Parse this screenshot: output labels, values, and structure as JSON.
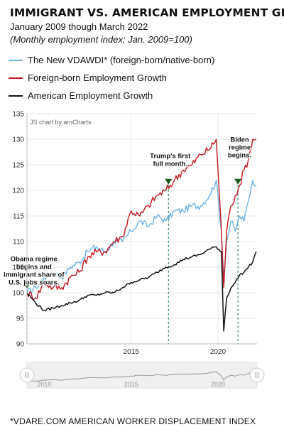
{
  "title": "IMMIGRANT VS. AMERICAN EMPLOYMENT GROWTH",
  "subtitle": "January 2009 though March 2022",
  "subtitle_note": "(Monthly employment index: Jan. 2009=100)",
  "credit": "JS chart by amCharts",
  "footnote": "*VDARE.COM AMERICAN WORKER DISPLACEMENT INDEX",
  "colors": {
    "vdawdi": "#6db3e8",
    "foreign": "#c4161c",
    "american": "#111111",
    "marker": "#1f5c1f",
    "vline": "#2e8b57",
    "grid": "#e8e8e8",
    "scrollbar_bg": "#efefef"
  },
  "chart_data": {
    "type": "line",
    "title": "IMMIGRANT VS. AMERICAN EMPLOYMENT GROWTH",
    "ylim": [
      90,
      135
    ],
    "xlim": [
      2009.0,
      2022.25
    ],
    "yticks": [
      90,
      95,
      100,
      105,
      110,
      115,
      120,
      125,
      130,
      135
    ],
    "xticks": [
      2015,
      2020
    ],
    "grid": true,
    "legend_position": "top-left",
    "series": [
      {
        "name": "The New VDAWDI* (foreign-born/native-born)",
        "color_key": "vdawdi",
        "x": [
          2009.0,
          2009.5,
          2010.0,
          2010.5,
          2011.0,
          2011.5,
          2012.0,
          2012.5,
          2013.0,
          2013.5,
          2014.0,
          2014.5,
          2015.0,
          2015.5,
          2016.0,
          2016.5,
          2017.0,
          2017.5,
          2018.0,
          2018.5,
          2019.0,
          2019.5,
          2019.9,
          2020.2,
          2020.33,
          2020.5,
          2020.75,
          2021.0,
          2021.25,
          2021.5,
          2021.75,
          2022.0,
          2022.2
        ],
        "values": [
          100,
          101,
          103,
          104,
          103,
          105,
          106,
          108,
          109,
          108,
          110,
          110,
          112,
          114,
          113,
          115,
          114,
          116,
          116,
          117,
          117,
          119,
          122,
          112,
          103,
          110,
          114,
          112,
          115,
          114,
          118,
          122,
          121
        ]
      },
      {
        "name": "Foreign-born Employment Growth",
        "color_key": "foreign",
        "x": [
          2009.0,
          2009.5,
          2010.0,
          2010.5,
          2011.0,
          2011.5,
          2012.0,
          2012.5,
          2013.0,
          2013.5,
          2014.0,
          2014.5,
          2015.0,
          2015.5,
          2016.0,
          2016.5,
          2017.0,
          2017.5,
          2018.0,
          2018.5,
          2019.0,
          2019.5,
          2019.9,
          2020.2,
          2020.33,
          2020.5,
          2020.75,
          2021.0,
          2021.25,
          2021.5,
          2021.75,
          2022.0,
          2022.2
        ],
        "values": [
          100,
          99,
          102,
          101,
          101,
          103,
          104,
          107,
          108,
          108,
          110,
          111,
          116,
          115,
          117,
          119,
          120,
          122,
          124,
          125,
          127,
          128,
          130,
          112,
          101,
          112,
          117,
          119,
          121,
          124,
          126,
          130,
          130
        ]
      },
      {
        "name": "American Employment Growth",
        "color_key": "american",
        "x": [
          2009.0,
          2009.5,
          2010.0,
          2010.5,
          2011.0,
          2011.5,
          2012.0,
          2012.5,
          2013.0,
          2013.5,
          2014.0,
          2014.5,
          2015.0,
          2015.5,
          2016.0,
          2016.5,
          2017.0,
          2017.5,
          2018.0,
          2018.5,
          2019.0,
          2019.5,
          2019.9,
          2020.2,
          2020.33,
          2020.5,
          2020.75,
          2021.0,
          2021.25,
          2021.5,
          2021.75,
          2022.0,
          2022.2
        ],
        "values": [
          100,
          98,
          96.5,
          97,
          97.5,
          98,
          98.5,
          99.5,
          99.5,
          100,
          100,
          101,
          102,
          102.5,
          103,
          104,
          105,
          105.5,
          106.5,
          107,
          107.5,
          108.5,
          109,
          108,
          92.5,
          99,
          101,
          102,
          103.5,
          104,
          105,
          106,
          108
        ]
      }
    ],
    "annotations": [
      {
        "text": "Obama regime begins and immigrant share of U.S. jobs soars.",
        "x": 2009.0,
        "y": 101.5,
        "lines": [
          "Obama regime",
          "begins and",
          "immigrant share of",
          "U.S. jobs soars."
        ]
      },
      {
        "text": "Trump's first full month.",
        "x": 2017.15,
        "y": 121.5,
        "lines": [
          "Trump's first",
          "full month."
        ]
      },
      {
        "text": "Biden regime begins.",
        "x": 2021.15,
        "y": 121.5,
        "lines": [
          "Biden",
          "regime",
          "begins."
        ]
      }
    ],
    "scrollbar": {
      "ticks": [
        2010,
        2015,
        2020
      ]
    }
  }
}
